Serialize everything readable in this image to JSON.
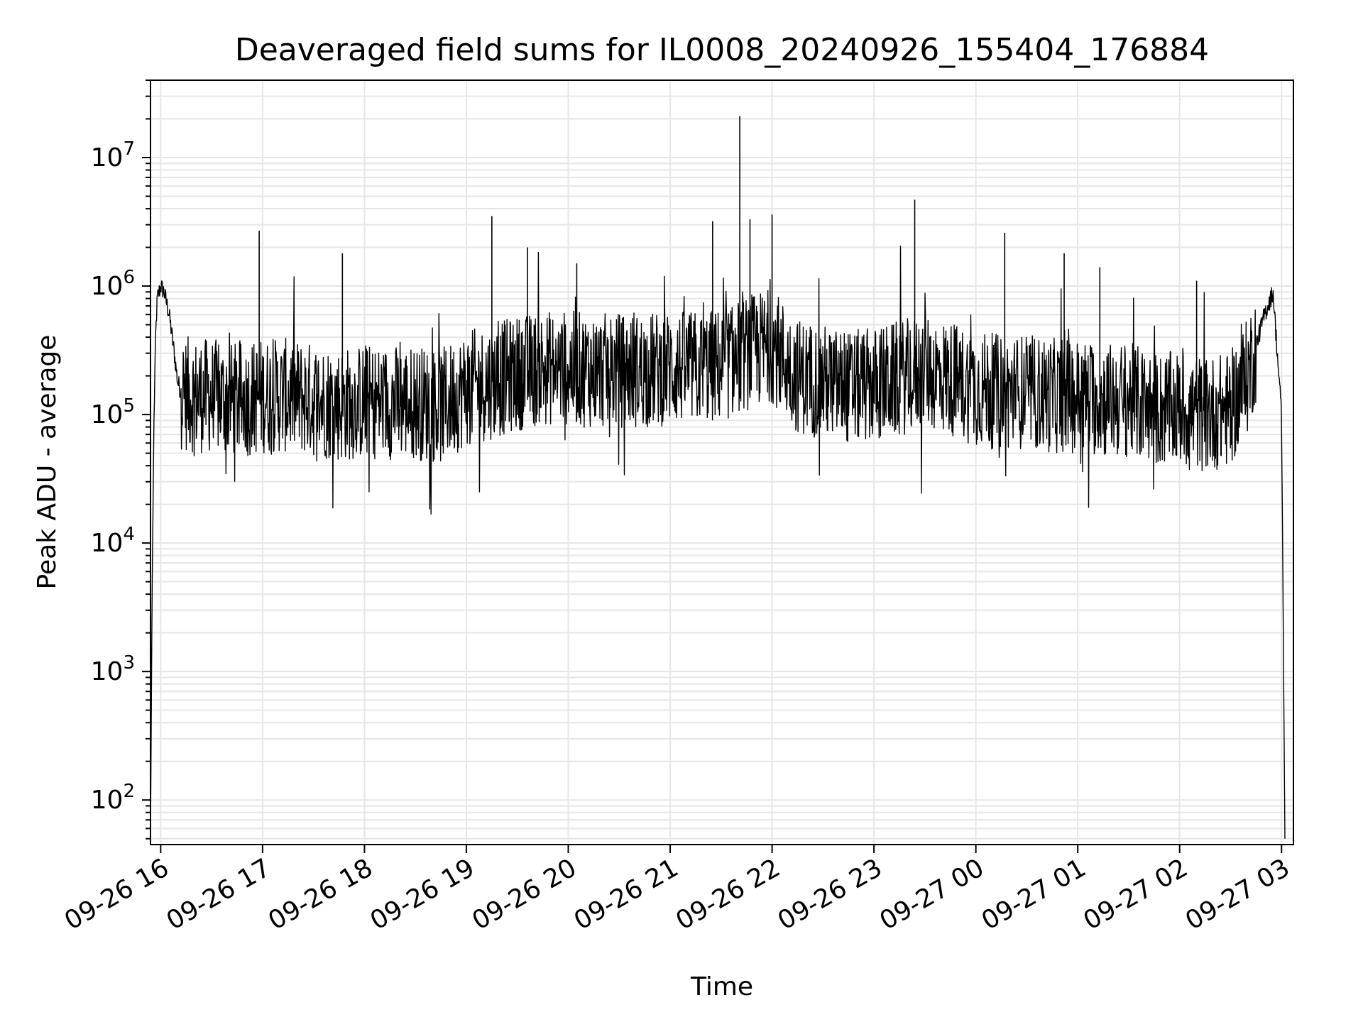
{
  "chart_data": {
    "type": "line",
    "title": "Deaveraged field sums for IL0008_20240926_155404_176884",
    "xlabel": "Time",
    "ylabel": "Peak ADU - average",
    "yscale": "log",
    "ylim": [
      45,
      40000000
    ],
    "xlim": [
      "2024-09-26 15:54",
      "2024-09-27 03:07"
    ],
    "grid": true,
    "line_color": "#000000",
    "grid_color": "#e6e6e6",
    "x_ticks": [
      {
        "t": "2024-09-26 16:00",
        "label": "09-26 16"
      },
      {
        "t": "2024-09-26 17:00",
        "label": "09-26 17"
      },
      {
        "t": "2024-09-26 18:00",
        "label": "09-26 18"
      },
      {
        "t": "2024-09-26 19:00",
        "label": "09-26 19"
      },
      {
        "t": "2024-09-26 20:00",
        "label": "09-26 20"
      },
      {
        "t": "2024-09-26 21:00",
        "label": "09-26 21"
      },
      {
        "t": "2024-09-26 22:00",
        "label": "09-26 22"
      },
      {
        "t": "2024-09-26 23:00",
        "label": "09-26 23"
      },
      {
        "t": "2024-09-27 00:00",
        "label": "09-27 00"
      },
      {
        "t": "2024-09-27 01:00",
        "label": "09-27 01"
      },
      {
        "t": "2024-09-27 02:00",
        "label": "09-27 02"
      },
      {
        "t": "2024-09-27 03:00",
        "label": "09-27 03"
      }
    ],
    "y_ticks": [
      {
        "value": 100,
        "base": "10",
        "exp": "2"
      },
      {
        "value": 1000,
        "base": "10",
        "exp": "3"
      },
      {
        "value": 10000,
        "base": "10",
        "exp": "4"
      },
      {
        "value": 100000,
        "base": "10",
        "exp": "5"
      },
      {
        "value": 1000000,
        "base": "10",
        "exp": "6"
      },
      {
        "value": 10000000,
        "base": "10",
        "exp": "7"
      }
    ],
    "series": [
      {
        "x": [
          "2024-09-26 15:54",
          "2024-09-26 15:55",
          "2024-09-26 15:56",
          "2024-09-26 15:57",
          "2024-09-26 15:58",
          "2024-09-26 16:00",
          "2024-09-26 16:02",
          "2024-09-26 16:05",
          "2024-09-26 16:08",
          "2024-09-26 16:10",
          "2024-09-26 16:12",
          "2024-09-26 16:20",
          "2024-09-26 16:30",
          "2024-09-26 16:40",
          "2024-09-26 16:50",
          "2024-09-26 17:00",
          "2024-09-26 17:15",
          "2024-09-26 17:30",
          "2024-09-26 17:45",
          "2024-09-26 18:00",
          "2024-09-26 18:15",
          "2024-09-26 18:30",
          "2024-09-26 18:45",
          "2024-09-26 19:00",
          "2024-09-26 19:15",
          "2024-09-26 19:30",
          "2024-09-26 19:45",
          "2024-09-26 20:00",
          "2024-09-26 20:15",
          "2024-09-26 20:30",
          "2024-09-26 20:45",
          "2024-09-26 21:00",
          "2024-09-26 21:15",
          "2024-09-26 21:30",
          "2024-09-26 21:45",
          "2024-09-26 22:00",
          "2024-09-26 22:15",
          "2024-09-26 22:30",
          "2024-09-26 22:45",
          "2024-09-26 23:00",
          "2024-09-26 23:15",
          "2024-09-26 23:30",
          "2024-09-26 23:45",
          "2024-09-27 00:00",
          "2024-09-27 00:15",
          "2024-09-27 00:30",
          "2024-09-27 00:45",
          "2024-09-27 01:00",
          "2024-09-27 01:15",
          "2024-09-27 01:30",
          "2024-09-27 01:45",
          "2024-09-27 02:00",
          "2024-09-27 02:15",
          "2024-09-27 02:30",
          "2024-09-27 02:40",
          "2024-09-27 02:50",
          "2024-09-27 02:55",
          "2024-09-27 03:00",
          "2024-09-27 03:02"
        ],
        "y": [
          50,
          5000,
          80000,
          400000,
          800000,
          1000000,
          900000,
          600000,
          300000,
          180000,
          150000,
          140000,
          140000,
          130000,
          130000,
          140000,
          140000,
          130000,
          120000,
          125000,
          125000,
          125000,
          115000,
          160000,
          180000,
          210000,
          230000,
          230000,
          220000,
          220000,
          220000,
          230000,
          230000,
          240000,
          300000,
          350000,
          200000,
          180000,
          160000,
          170000,
          190000,
          220000,
          190000,
          160000,
          150000,
          150000,
          140000,
          140000,
          130000,
          130000,
          110000,
          110000,
          100000,
          110000,
          200000,
          600000,
          900000,
          100000,
          50
        ]
      }
    ],
    "spikes": [
      {
        "x": "2024-09-26 16:58",
        "y": 2700000
      },
      {
        "x": "2024-09-26 17:47",
        "y": 1800000
      },
      {
        "x": "2024-09-26 19:15",
        "y": 3500000
      },
      {
        "x": "2024-09-26 19:36",
        "y": 2000000
      },
      {
        "x": "2024-09-26 20:05",
        "y": 1500000
      },
      {
        "x": "2024-09-26 21:25",
        "y": 3200000
      },
      {
        "x": "2024-09-26 21:41",
        "y": 21000000
      },
      {
        "x": "2024-09-26 21:47",
        "y": 3300000
      },
      {
        "x": "2024-09-26 22:00",
        "y": 3600000
      },
      {
        "x": "2024-09-26 23:24",
        "y": 4700000
      },
      {
        "x": "2024-09-27 00:17",
        "y": 2600000
      },
      {
        "x": "2024-09-27 00:52",
        "y": 1800000
      },
      {
        "x": "2024-09-27 01:13",
        "y": 1400000
      },
      {
        "x": "2024-09-27 02:10",
        "y": 1100000
      }
    ]
  }
}
